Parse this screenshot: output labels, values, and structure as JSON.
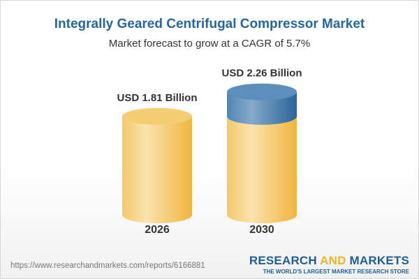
{
  "title": "Integrally Geared Centrifugal Compressor Market",
  "subtitle": "Market forecast to grow at a CAGR of 5.7%",
  "chart_data": {
    "type": "bar",
    "style": "3d-cylinder",
    "categories": [
      "2026",
      "2030"
    ],
    "values": [
      1.81,
      2.26
    ],
    "data_labels": [
      "USD 1.81 Billion",
      "USD 2.26 Billion"
    ],
    "unit": "USD Billion",
    "grid": false,
    "colors": {
      "base": "#f3c45c",
      "growth": "#4a80b0"
    }
  },
  "footer": {
    "url": "https://www.researchandmarkets.com/reports/6166881",
    "logo_part1": "RESEARCH ",
    "logo_part2": "AND",
    "logo_part3": " MARKETS",
    "tagline": "THE WORLD'S LARGEST MARKET RESEARCH STORE"
  }
}
